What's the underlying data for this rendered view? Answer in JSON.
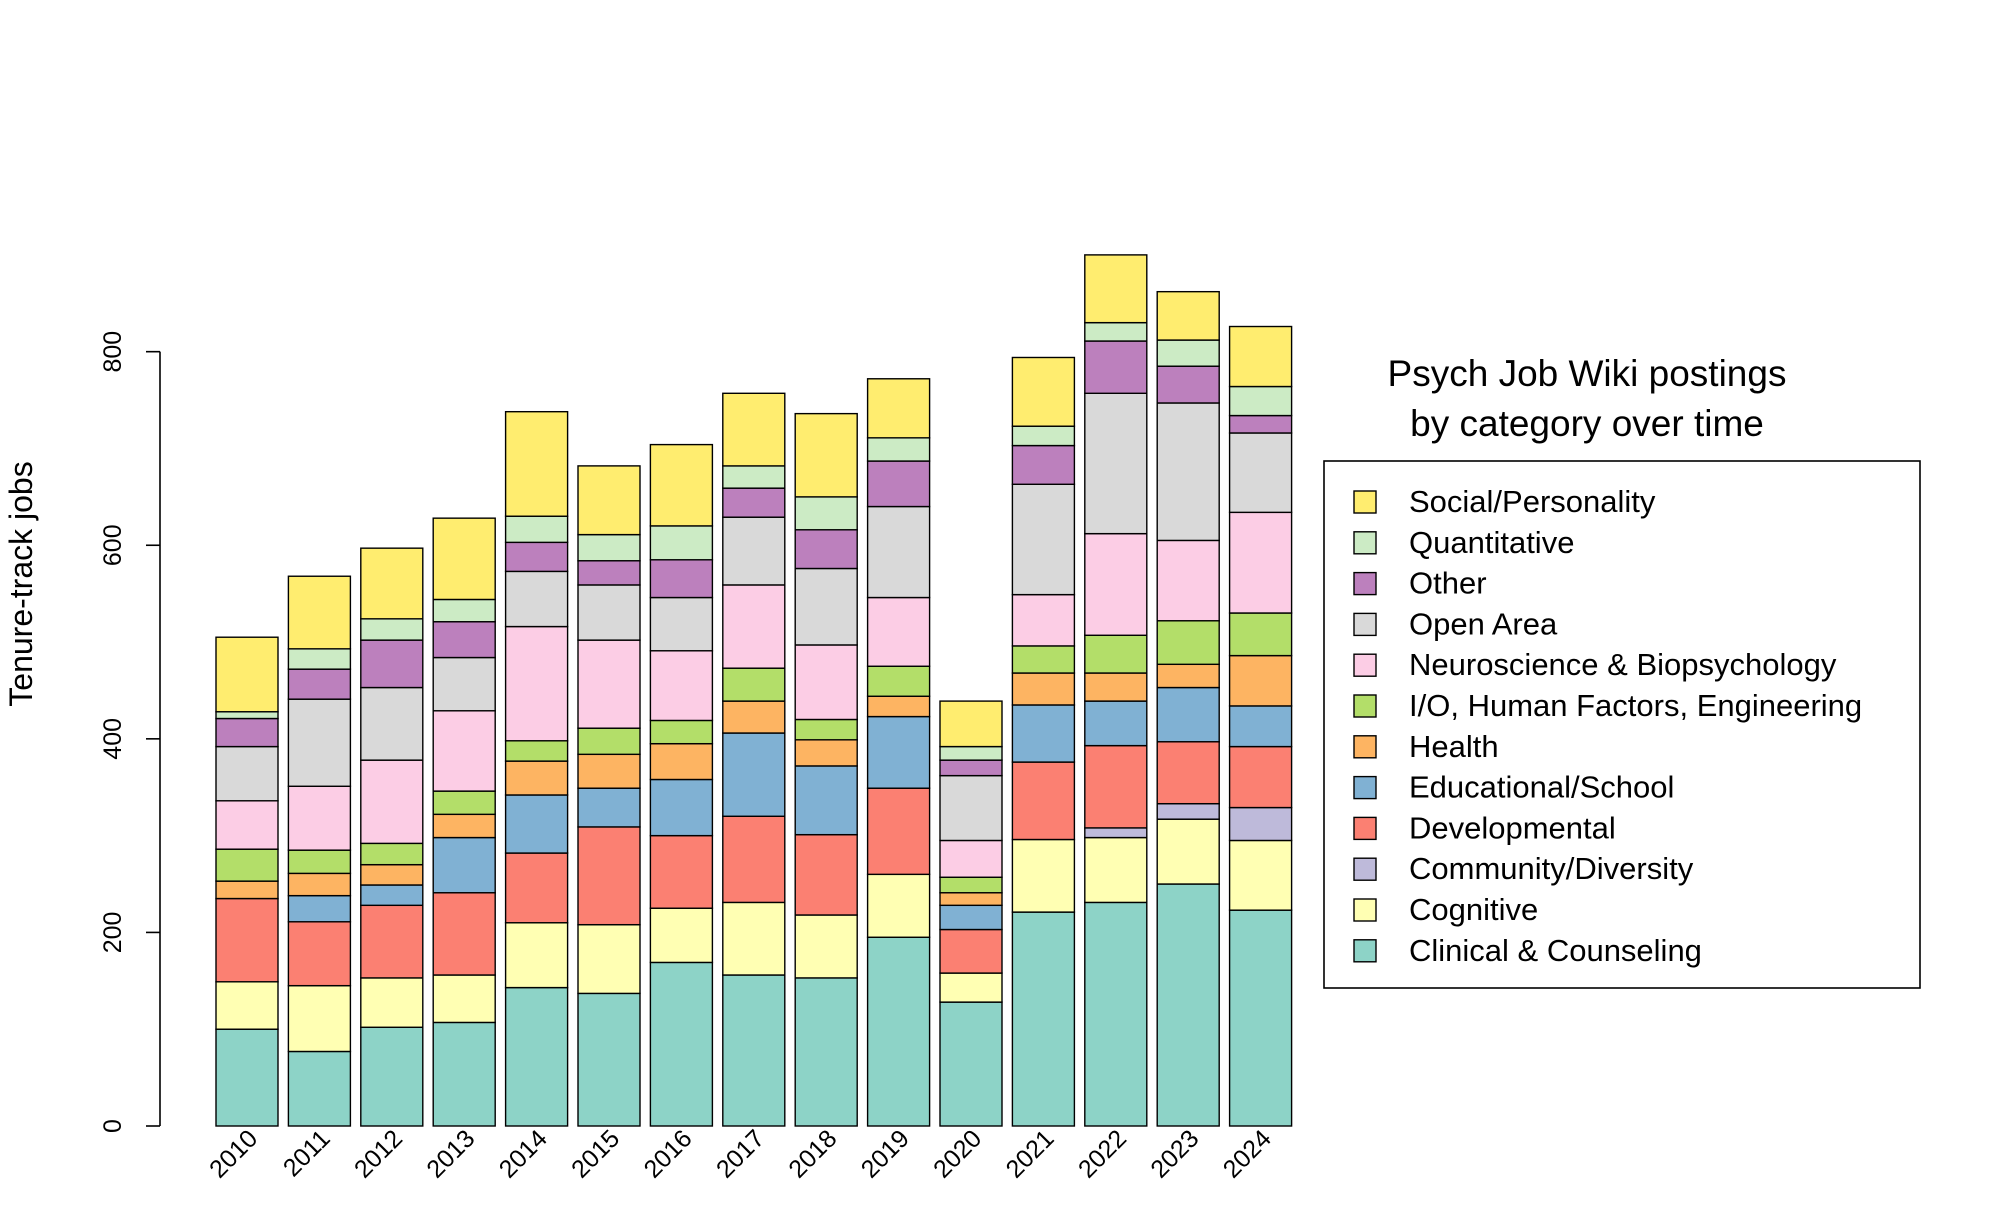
{
  "chart_data": {
    "type": "bar",
    "stacked": true,
    "title": "Psych Job Wiki postings\nby category over time",
    "xlabel": "",
    "ylabel": "Tenure-track jobs",
    "ylim": [
      0,
      900
    ],
    "yticks": [
      0,
      200,
      400,
      600,
      800
    ],
    "grid": false,
    "legend_position": "right",
    "categories": [
      "2010",
      "2011",
      "2012",
      "2013",
      "2014",
      "2015",
      "2016",
      "2017",
      "2018",
      "2019",
      "2020",
      "2021",
      "2022",
      "2023",
      "2024"
    ],
    "series": [
      {
        "name": "Clinical & Counseling",
        "color": "#8dd3c7",
        "values": [
          100,
          77,
          102,
          107,
          143,
          137,
          169,
          156,
          153,
          195,
          128,
          221,
          231,
          250,
          223
        ]
      },
      {
        "name": "Cognitive",
        "color": "#ffffb3",
        "values": [
          49,
          68,
          51,
          49,
          67,
          71,
          56,
          75,
          65,
          65,
          30,
          75,
          67,
          67,
          72
        ]
      },
      {
        "name": "Community/Diversity",
        "color": "#bebada",
        "values": [
          0,
          0,
          0,
          0,
          0,
          0,
          0,
          0,
          0,
          0,
          0,
          0,
          10,
          16,
          34
        ]
      },
      {
        "name": "Developmental",
        "color": "#fb8072",
        "values": [
          86,
          66,
          75,
          85,
          72,
          101,
          75,
          89,
          83,
          89,
          45,
          80,
          85,
          64,
          63
        ]
      },
      {
        "name": "Educational/School",
        "color": "#80b1d3",
        "values": [
          0,
          27,
          21,
          57,
          60,
          40,
          58,
          86,
          71,
          74,
          25,
          59,
          46,
          56,
          42
        ]
      },
      {
        "name": "Health",
        "color": "#fdb462",
        "values": [
          18,
          23,
          21,
          24,
          35,
          35,
          37,
          33,
          27,
          21,
          13,
          33,
          29,
          24,
          52
        ]
      },
      {
        "name": "I/O, Human Factors, Engineering",
        "color": "#b3de69",
        "values": [
          33,
          24,
          22,
          24,
          21,
          27,
          24,
          34,
          21,
          31,
          16,
          28,
          39,
          45,
          44
        ]
      },
      {
        "name": "Neuroscience & Biopsychology",
        "color": "#fccde5",
        "values": [
          50,
          66,
          86,
          83,
          118,
          91,
          72,
          86,
          77,
          71,
          38,
          53,
          105,
          83,
          104
        ]
      },
      {
        "name": "Open Area",
        "color": "#d9d9d9",
        "values": [
          56,
          90,
          75,
          55,
          57,
          57,
          55,
          70,
          79,
          94,
          67,
          114,
          145,
          142,
          82
        ]
      },
      {
        "name": "Other",
        "color": "#bc80bd",
        "values": [
          29,
          31,
          49,
          37,
          30,
          25,
          39,
          30,
          40,
          47,
          16,
          40,
          54,
          38,
          18
        ]
      },
      {
        "name": "Quantitative",
        "color": "#ccebc5",
        "values": [
          7,
          21,
          22,
          23,
          27,
          27,
          35,
          23,
          34,
          24,
          14,
          20,
          19,
          27,
          30
        ]
      },
      {
        "name": "Social/Personality",
        "color": "#ffed6f",
        "values": [
          77,
          75,
          73,
          84,
          108,
          71,
          84,
          75,
          86,
          61,
          47,
          71,
          70,
          50,
          62
        ]
      }
    ]
  }
}
